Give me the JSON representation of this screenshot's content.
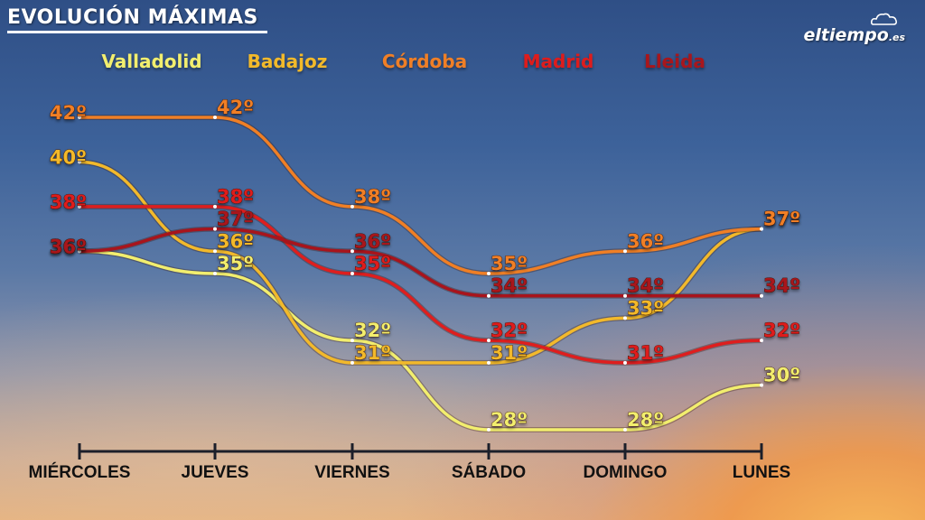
{
  "title": "EVOLUCIÓN MÁXIMAS",
  "logo": {
    "name": "eltiempo",
    "suffix": ".es"
  },
  "chart_data": {
    "type": "line",
    "title": "EVOLUCIÓN MÁXIMAS",
    "categories": [
      "MIÉRCOLES",
      "JUEVES",
      "VIERNES",
      "SÁBADO",
      "DOMINGO",
      "LUNES"
    ],
    "ylim": [
      26,
      44
    ],
    "unit": "º",
    "grid": false,
    "legend_position": "top",
    "series": [
      {
        "name": "Valladolid",
        "color": "#f2ee6e",
        "values": [
          36,
          35,
          32,
          28,
          28,
          30
        ]
      },
      {
        "name": "Badajoz",
        "color": "#f2b92b",
        "values": [
          40,
          36,
          31,
          31,
          33,
          37
        ]
      },
      {
        "name": "Córdoba",
        "color": "#f07f25",
        "values": [
          42,
          42,
          38,
          35,
          36,
          37
        ]
      },
      {
        "name": "Madrid",
        "color": "#de1e1e",
        "values": [
          38,
          38,
          35,
          32,
          31,
          32
        ]
      },
      {
        "name": "Lleida",
        "color": "#a8141c",
        "values": [
          36,
          37,
          36,
          34,
          34,
          34
        ]
      }
    ]
  }
}
